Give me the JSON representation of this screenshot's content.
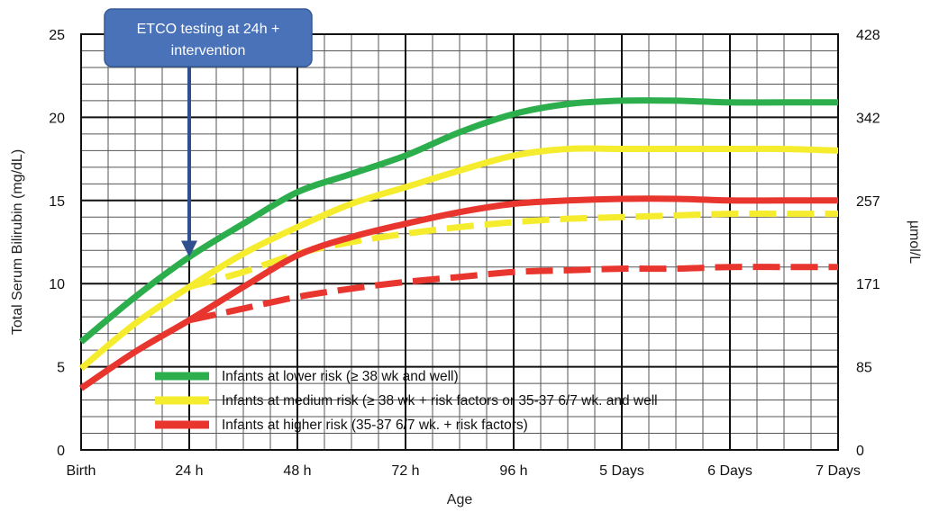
{
  "chart_data": {
    "type": "line",
    "xlabel": "Age",
    "ylabel": "Total Serum Bilirubin (mg/dL)",
    "y2label": "µmol/L",
    "x_tick_labels": [
      "Birth",
      "24 h",
      "48 h",
      "72 h",
      "96 h",
      "5 Days",
      "6 Days",
      "7 Days"
    ],
    "xlim": [
      0,
      7
    ],
    "ylim": [
      0,
      25
    ],
    "y_ticks": [
      0,
      5,
      10,
      15,
      20,
      25
    ],
    "y2_ticks": [
      {
        "value": 0,
        "label": "0"
      },
      {
        "value": 5,
        "label": "85"
      },
      {
        "value": 10,
        "label": "171"
      },
      {
        "value": 15,
        "label": "257"
      },
      {
        "value": 20,
        "label": "342"
      },
      {
        "value": 25,
        "label": "428"
      }
    ],
    "grid": true,
    "legend_position": "bottom-right",
    "series": [
      {
        "name": "Infants at lower risk (≥ 38 wk and well)",
        "color": "#2bae4b",
        "style": "solid",
        "points": [
          [
            0,
            6.5
          ],
          [
            0.5,
            9.2
          ],
          [
            1,
            11.6
          ],
          [
            1.5,
            13.6
          ],
          [
            2,
            15.5
          ],
          [
            2.5,
            16.6
          ],
          [
            3,
            17.7
          ],
          [
            3.5,
            19.1
          ],
          [
            4,
            20.2
          ],
          [
            4.5,
            20.8
          ],
          [
            5,
            21.0
          ],
          [
            5.5,
            21.0
          ],
          [
            6,
            20.9
          ],
          [
            6.5,
            20.9
          ],
          [
            7,
            20.9
          ]
        ]
      },
      {
        "name": "Infants at medium risk (≥ 38 wk + risk factors or 35-37 6/7 wk. and well",
        "color": "#f6ec2e",
        "style": "solid",
        "points": [
          [
            0,
            4.9
          ],
          [
            0.5,
            7.6
          ],
          [
            1,
            9.8
          ],
          [
            1.5,
            11.8
          ],
          [
            2,
            13.4
          ],
          [
            2.5,
            14.8
          ],
          [
            3,
            15.8
          ],
          [
            3.5,
            16.8
          ],
          [
            4,
            17.7
          ],
          [
            4.5,
            18.1
          ],
          [
            5,
            18.1
          ],
          [
            5.5,
            18.1
          ],
          [
            6,
            18.1
          ],
          [
            6.5,
            18.1
          ],
          [
            7,
            18.0
          ]
        ]
      },
      {
        "name": "Infants at higher risk (35-37 6/7 wk. + risk factors)",
        "color": "#e8362e",
        "style": "solid",
        "points": [
          [
            0,
            3.7
          ],
          [
            0.5,
            5.9
          ],
          [
            1,
            7.8
          ],
          [
            1.5,
            9.8
          ],
          [
            2,
            11.7
          ],
          [
            2.5,
            12.8
          ],
          [
            3,
            13.6
          ],
          [
            3.5,
            14.3
          ],
          [
            4,
            14.8
          ],
          [
            4.5,
            15.0
          ],
          [
            5,
            15.1
          ],
          [
            5.5,
            15.1
          ],
          [
            6,
            15.0
          ],
          [
            6.5,
            15.0
          ],
          [
            7,
            15.0
          ]
        ]
      },
      {
        "color": "#f6ec2e",
        "style": "dashed",
        "points": [
          [
            1,
            9.8
          ],
          [
            1.5,
            10.7
          ],
          [
            2,
            11.8
          ],
          [
            2.5,
            12.5
          ],
          [
            3,
            13.0
          ],
          [
            3.5,
            13.4
          ],
          [
            4,
            13.7
          ],
          [
            4.5,
            13.9
          ],
          [
            5,
            14.0
          ],
          [
            5.5,
            14.1
          ],
          [
            6,
            14.2
          ],
          [
            6.5,
            14.2
          ],
          [
            7,
            14.2
          ]
        ]
      },
      {
        "color": "#e8362e",
        "style": "dashed",
        "points": [
          [
            1,
            7.8
          ],
          [
            1.5,
            8.5
          ],
          [
            2,
            9.2
          ],
          [
            2.5,
            9.7
          ],
          [
            3,
            10.1
          ],
          [
            3.5,
            10.4
          ],
          [
            4,
            10.7
          ],
          [
            4.5,
            10.8
          ],
          [
            5,
            10.9
          ],
          [
            5.5,
            10.9
          ],
          [
            6,
            11.0
          ],
          [
            6.5,
            11.0
          ],
          [
            7,
            11.0
          ]
        ]
      }
    ],
    "annotation": {
      "text_lines": [
        "ETCO testing at 24h +",
        "intervention"
      ],
      "arrow_target": {
        "x": 1,
        "y": 11.5
      },
      "box_color": "#4a72b8",
      "arrow_color": "#2f4f8f"
    }
  }
}
